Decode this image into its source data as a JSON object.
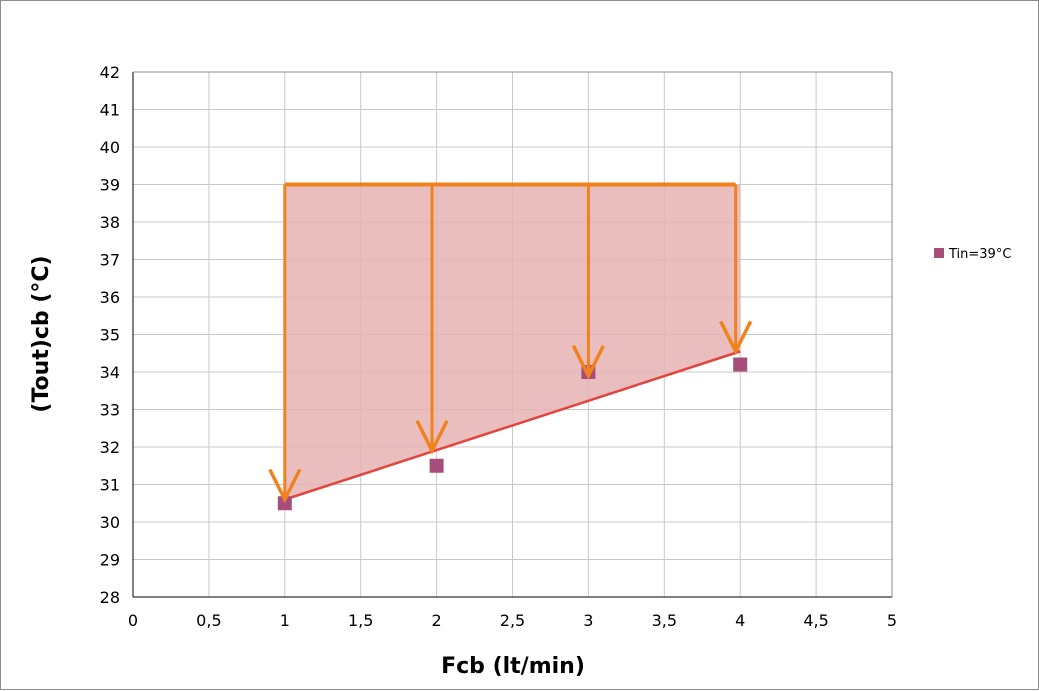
{
  "chart_data": {
    "type": "scatter",
    "xlabel": "Fcb (lt/min)",
    "ylabel": "(Tout)cb  (°C)",
    "xlim": [
      0,
      5
    ],
    "ylim": [
      28,
      42
    ],
    "x_ticks": [
      "0",
      "0,5",
      "1",
      "1,5",
      "2",
      "2,5",
      "3",
      "3,5",
      "4",
      "4,5",
      "5"
    ],
    "y_ticks": [
      "28",
      "29",
      "30",
      "31",
      "32",
      "33",
      "34",
      "35",
      "36",
      "37",
      "38",
      "39",
      "40",
      "41",
      "42"
    ],
    "grid": true,
    "legend_position": "right",
    "series": [
      {
        "name": "Tin=39°C",
        "color": "#a64d79",
        "marker": "square",
        "x": [
          1,
          2,
          3,
          4
        ],
        "y": [
          30.5,
          31.5,
          34.0,
          34.2
        ]
      }
    ],
    "annotations": {
      "shaded_region": {
        "color": "#e6b2b3",
        "top_y": 39,
        "x_range": [
          1,
          4
        ],
        "bottom_line": {
          "x": [
            1,
            4
          ],
          "y": [
            30.6,
            34.55
          ]
        }
      },
      "top_line": {
        "x": [
          1,
          3.97
        ],
        "y": 39,
        "color": "#f0821e"
      },
      "arrows": [
        {
          "x": 1,
          "from_y": 39,
          "to_y": 30.6
        },
        {
          "x": 1.97,
          "from_y": 39,
          "to_y": 31.9
        },
        {
          "x": 3,
          "from_y": 39,
          "to_y": 33.9
        },
        {
          "x": 3.97,
          "from_y": 39,
          "to_y": 34.55
        }
      ],
      "arrow_color": "#f0821e",
      "trend_color": "#e2453d"
    }
  }
}
